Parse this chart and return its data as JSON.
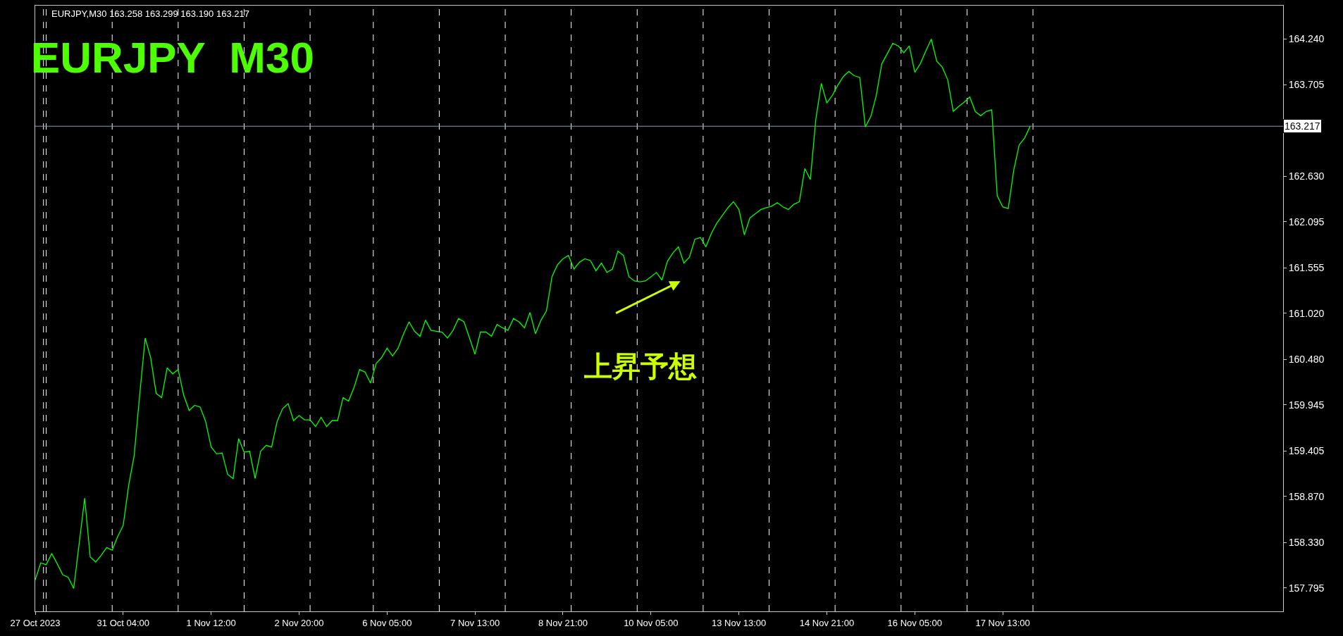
{
  "chart_data": {
    "type": "line",
    "title": "EURJPY  M30",
    "annotations": [
      "EURJPY,M30 163.258 163.299 163.190 163.217",
      "上昇予想"
    ],
    "categories": [
      "27 Oct 2023",
      null,
      null,
      null,
      null,
      null,
      null,
      null,
      null,
      null,
      null,
      null,
      null,
      null,
      null,
      null,
      "31 Oct 04:00",
      null,
      null,
      null,
      null,
      null,
      null,
      null,
      null,
      null,
      null,
      null,
      null,
      null,
      null,
      null,
      "1 Nov 12:00",
      null,
      null,
      null,
      null,
      null,
      null,
      null,
      null,
      null,
      null,
      null,
      null,
      null,
      null,
      null,
      "2 Nov 20:00",
      null,
      null,
      null,
      null,
      null,
      null,
      null,
      null,
      null,
      null,
      null,
      null,
      null,
      null,
      null,
      "6 Nov 05:00",
      null,
      null,
      null,
      null,
      null,
      null,
      null,
      null,
      null,
      null,
      null,
      null,
      null,
      null,
      null,
      "7 Nov 13:00",
      null,
      null,
      null,
      null,
      null,
      null,
      null,
      null,
      null,
      null,
      null,
      null,
      null,
      null,
      null,
      "8 Nov 21:00",
      null,
      null,
      null,
      null,
      null,
      null,
      null,
      null,
      null,
      null,
      null,
      null,
      null,
      null,
      null,
      "10 Nov 05:00",
      null,
      null,
      null,
      null,
      null,
      null,
      null,
      null,
      null,
      null,
      null,
      null,
      null,
      null,
      null,
      "13 Nov 13:00",
      null,
      null,
      null,
      null,
      null,
      null,
      null,
      null,
      null,
      null,
      null,
      null,
      null,
      null,
      null,
      "14 Nov 21:00",
      null,
      null,
      null,
      null,
      null,
      null,
      null,
      null,
      null,
      null,
      null,
      null,
      null,
      null,
      null,
      "16 Nov 05:00",
      null,
      null,
      null,
      null,
      null,
      null,
      null,
      null,
      null,
      null,
      null,
      null,
      null,
      null,
      null,
      "17 Nov 13:00",
      null,
      null,
      null,
      null,
      null,
      null,
      null,
      null,
      null,
      null,
      null,
      null,
      null,
      null,
      null,
      null,
      null,
      null,
      null,
      null,
      null,
      null,
      null,
      null,
      null,
      null,
      null,
      null,
      null,
      null,
      null,
      null,
      null,
      null,
      null,
      null,
      null,
      null,
      null,
      null,
      null,
      null,
      null,
      null,
      null,
      null,
      null,
      null,
      null,
      null,
      null
    ],
    "ylim": [
      157.521,
      164.633
    ],
    "yticks": [
      157.795,
      {
        "value": 158.33,
        "label": "158.330"
      },
      {
        "value": 158.87,
        "label": "158.870"
      },
      159.405,
      159.945,
      {
        "value": 160.48,
        "label": "160.480"
      },
      {
        "value": 161.02,
        "label": "161.020"
      },
      161.555,
      162.095,
      {
        "value": 162.63,
        "label": "162.630"
      },
      163.705,
      {
        "value": 164.24,
        "label": "164.240"
      }
    ],
    "ref_lines": [
      {
        "axis": "y",
        "value": 163.217,
        "label": "163.217",
        "color": "#8c9caf",
        "line_style": "solid"
      }
    ],
    "series": [
      {
        "color": "#00ff00",
        "values": [
          157.89,
          158.09,
          158.07,
          158.2,
          158.08,
          157.95,
          157.92,
          157.79,
          158.32,
          158.85,
          158.16,
          158.1,
          158.18,
          158.27,
          158.24,
          158.4,
          158.53,
          159.0,
          159.35,
          160.06,
          160.73,
          160.5,
          160.08,
          160.03,
          160.38,
          160.31,
          160.36,
          160.06,
          159.88,
          159.94,
          159.92,
          159.75,
          159.45,
          159.37,
          159.38,
          159.13,
          159.08,
          159.55,
          159.39,
          159.4,
          159.08,
          159.4,
          159.47,
          159.45,
          159.75,
          159.9,
          159.96,
          159.76,
          159.82,
          159.77,
          159.77,
          159.69,
          159.8,
          159.69,
          159.76,
          159.76,
          160.03,
          159.99,
          160.15,
          160.36,
          160.33,
          160.2,
          160.43,
          160.5,
          160.61,
          160.52,
          160.61,
          160.78,
          160.92,
          160.81,
          160.75,
          160.94,
          160.82,
          160.81,
          160.8,
          160.73,
          160.82,
          160.96,
          160.92,
          160.73,
          160.54,
          160.8,
          160.8,
          160.75,
          160.89,
          160.85,
          160.82,
          160.96,
          160.92,
          160.85,
          161.03,
          160.78,
          160.94,
          161.05,
          161.45,
          161.59,
          161.66,
          161.7,
          161.54,
          161.62,
          161.66,
          161.64,
          161.52,
          161.61,
          161.5,
          161.54,
          161.75,
          161.7,
          161.45,
          161.4,
          161.39,
          161.4,
          161.45,
          161.5,
          161.41,
          161.63,
          161.73,
          161.8,
          161.61,
          161.68,
          161.89,
          161.91,
          161.8,
          161.96,
          162.08,
          162.17,
          162.26,
          162.33,
          162.24,
          161.94,
          162.14,
          162.19,
          162.24,
          162.26,
          162.28,
          162.32,
          162.27,
          162.24,
          162.3,
          162.33,
          162.72,
          162.59,
          163.3,
          163.72,
          163.49,
          163.58,
          163.7,
          163.8,
          163.86,
          163.81,
          163.79,
          163.21,
          163.33,
          163.58,
          163.95,
          164.07,
          164.19,
          164.16,
          164.08,
          164.16,
          163.85,
          163.95,
          164.1,
          164.24,
          163.98,
          163.91,
          163.76,
          163.39,
          163.45,
          163.5,
          163.56,
          163.39,
          163.34,
          163.39,
          163.41,
          162.4,
          162.27,
          162.25,
          162.7,
          163.0,
          163.08,
          163.22,
          null,
          null,
          null,
          null,
          null,
          null,
          null,
          null,
          null,
          null,
          null,
          null,
          null,
          null,
          null,
          null,
          null,
          null,
          null,
          null,
          null,
          null,
          null,
          null,
          null,
          null,
          null,
          null,
          null,
          null,
          null,
          null,
          null,
          null,
          null,
          null,
          null,
          null,
          null,
          null,
          null,
          null,
          null,
          null,
          null,
          null
        ]
      }
    ]
  }
}
